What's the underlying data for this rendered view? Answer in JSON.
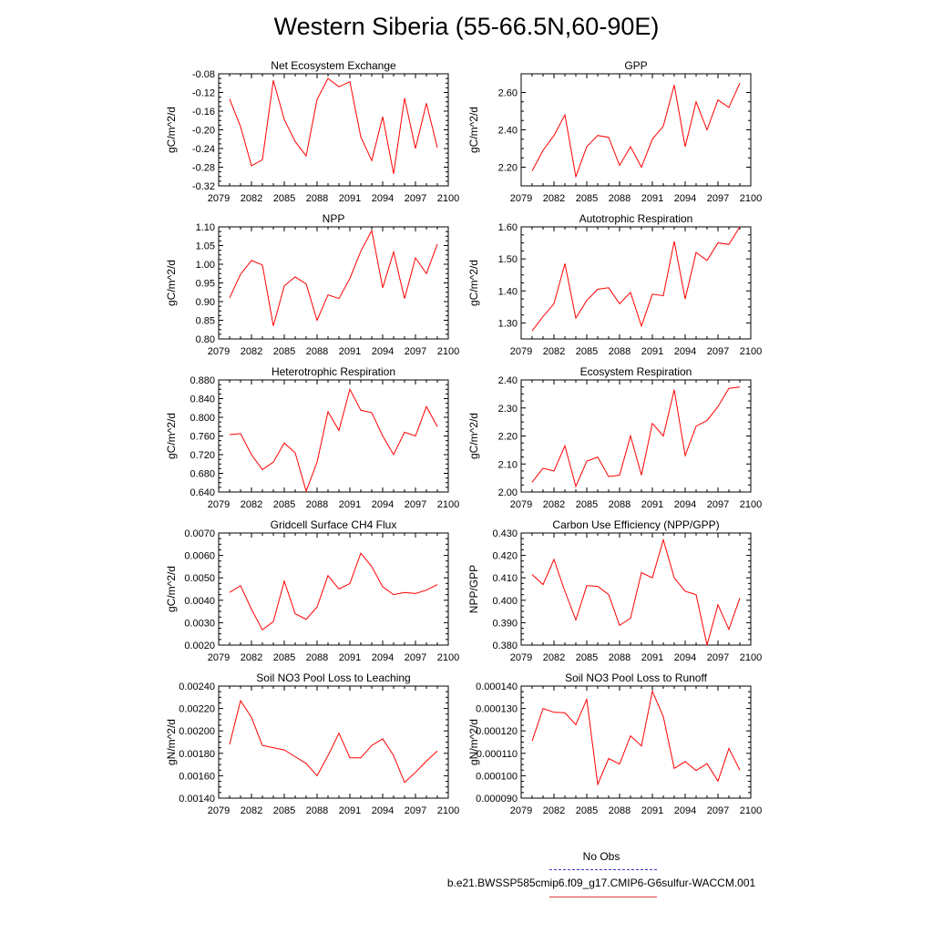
{
  "title": "Western Siberia (55-66.5N,60-90E)",
  "legend": {
    "obs_label": "No Obs",
    "case_label": "b.e21.BWSSP585cmip6.f09_g17.CMIP6-G6sulfur-WACCM.001",
    "obs_color": "#3a3acc",
    "case_color": "#e23a3a"
  },
  "colors": {
    "series": "#ff0000",
    "axis": "#000000"
  },
  "chart_data": [
    {
      "type": "line",
      "title": "Net Ecosystem Exchange",
      "ylabel": "gC/m^2/d",
      "xlim": [
        2079,
        2100
      ],
      "xticks": [
        2079,
        2082,
        2085,
        2088,
        2091,
        2094,
        2097,
        2100
      ],
      "ylim": [
        -0.32,
        -0.08
      ],
      "yticks": [
        -0.32,
        -0.28,
        -0.24,
        -0.2,
        -0.16,
        -0.12,
        -0.08
      ],
      "yticklabels": [
        "-0.32",
        "-0.28",
        "-0.24",
        "-0.20",
        "-0.16",
        "-0.12",
        "-0.08"
      ],
      "x": [
        2080,
        2081,
        2082,
        2083,
        2084,
        2085,
        2086,
        2087,
        2088,
        2089,
        2090,
        2091,
        2092,
        2093,
        2094,
        2095,
        2096,
        2097,
        2098,
        2099
      ],
      "values": [
        -0.134,
        -0.193,
        -0.277,
        -0.264,
        -0.094,
        -0.178,
        -0.225,
        -0.256,
        -0.135,
        -0.09,
        -0.108,
        -0.097,
        -0.215,
        -0.266,
        -0.172,
        -0.294,
        -0.132,
        -0.24,
        -0.143,
        -0.238
      ]
    },
    {
      "type": "line",
      "title": "GPP",
      "ylabel": "gC/m^2/d",
      "xlim": [
        2079,
        2100
      ],
      "xticks": [
        2079,
        2082,
        2085,
        2088,
        2091,
        2094,
        2097,
        2100
      ],
      "ylim": [
        2.1,
        2.7
      ],
      "yticks": [
        2.2,
        2.4,
        2.6
      ],
      "yticklabels": [
        "2.20",
        "2.40",
        "2.60"
      ],
      "x": [
        2080,
        2081,
        2082,
        2083,
        2084,
        2085,
        2086,
        2087,
        2088,
        2089,
        2090,
        2091,
        2092,
        2093,
        2094,
        2095,
        2096,
        2097,
        2098,
        2099
      ],
      "values": [
        2.18,
        2.29,
        2.37,
        2.48,
        2.15,
        2.31,
        2.37,
        2.36,
        2.21,
        2.31,
        2.2,
        2.35,
        2.42,
        2.64,
        2.31,
        2.55,
        2.4,
        2.56,
        2.52,
        2.65
      ]
    },
    {
      "type": "line",
      "title": "NPP",
      "ylabel": "gC/m^2/d",
      "xlim": [
        2079,
        2100
      ],
      "xticks": [
        2079,
        2082,
        2085,
        2088,
        2091,
        2094,
        2097,
        2100
      ],
      "ylim": [
        0.8,
        1.1
      ],
      "yticks": [
        0.8,
        0.85,
        0.9,
        0.95,
        1.0,
        1.05,
        1.1
      ],
      "yticklabels": [
        "0.80",
        "0.85",
        "0.90",
        "0.95",
        "1.00",
        "1.05",
        "1.10"
      ],
      "x": [
        2080,
        2081,
        2082,
        2083,
        2084,
        2085,
        2086,
        2087,
        2088,
        2089,
        2090,
        2091,
        2092,
        2093,
        2094,
        2095,
        2096,
        2097,
        2098,
        2099
      ],
      "values": [
        0.91,
        0.973,
        1.01,
        0.998,
        0.835,
        0.942,
        0.966,
        0.947,
        0.85,
        0.918,
        0.908,
        0.962,
        1.035,
        1.09,
        0.937,
        1.033,
        0.908,
        1.017,
        0.975,
        1.054
      ]
    },
    {
      "type": "line",
      "title": "Autotrophic Respiration",
      "ylabel": "gC/m^2/d",
      "xlim": [
        2079,
        2100
      ],
      "xticks": [
        2079,
        2082,
        2085,
        2088,
        2091,
        2094,
        2097,
        2100
      ],
      "ylim": [
        1.25,
        1.6
      ],
      "yticks": [
        1.3,
        1.4,
        1.5,
        1.6
      ],
      "yticklabels": [
        "1.30",
        "1.40",
        "1.50",
        "1.60"
      ],
      "x": [
        2080,
        2081,
        2082,
        2083,
        2084,
        2085,
        2086,
        2087,
        2088,
        2089,
        2090,
        2091,
        2092,
        2093,
        2094,
        2095,
        2096,
        2097,
        2098,
        2099
      ],
      "values": [
        1.275,
        1.32,
        1.36,
        1.485,
        1.315,
        1.37,
        1.405,
        1.41,
        1.36,
        1.395,
        1.29,
        1.39,
        1.385,
        1.555,
        1.375,
        1.52,
        1.495,
        1.55,
        1.545,
        1.6
      ]
    },
    {
      "type": "line",
      "title": "Heterotrophic Respiration",
      "ylabel": "gC/m^2/d",
      "xlim": [
        2079,
        2100
      ],
      "xticks": [
        2079,
        2082,
        2085,
        2088,
        2091,
        2094,
        2097,
        2100
      ],
      "ylim": [
        0.64,
        0.88
      ],
      "yticks": [
        0.64,
        0.68,
        0.72,
        0.76,
        0.8,
        0.84,
        0.88
      ],
      "yticklabels": [
        "0.640",
        "0.680",
        "0.720",
        "0.760",
        "0.800",
        "0.840",
        "0.880"
      ],
      "x": [
        2080,
        2081,
        2082,
        2083,
        2084,
        2085,
        2086,
        2087,
        2088,
        2089,
        2090,
        2091,
        2092,
        2093,
        2094,
        2095,
        2096,
        2097,
        2098,
        2099
      ],
      "values": [
        0.763,
        0.765,
        0.72,
        0.688,
        0.704,
        0.745,
        0.724,
        0.642,
        0.704,
        0.812,
        0.772,
        0.86,
        0.815,
        0.81,
        0.76,
        0.72,
        0.768,
        0.76,
        0.823,
        0.78
      ]
    },
    {
      "type": "line",
      "title": "Ecosystem Respiration",
      "ylabel": "gC/m^2/d",
      "xlim": [
        2079,
        2100
      ],
      "xticks": [
        2079,
        2082,
        2085,
        2088,
        2091,
        2094,
        2097,
        2100
      ],
      "ylim": [
        2.0,
        2.4
      ],
      "yticks": [
        2.0,
        2.1,
        2.2,
        2.3,
        2.4
      ],
      "yticklabels": [
        "2.00",
        "2.10",
        "2.20",
        "2.30",
        "2.40"
      ],
      "x": [
        2080,
        2081,
        2082,
        2083,
        2084,
        2085,
        2086,
        2087,
        2088,
        2089,
        2090,
        2091,
        2092,
        2093,
        2094,
        2095,
        2096,
        2097,
        2098,
        2099
      ],
      "values": [
        2.035,
        2.085,
        2.075,
        2.165,
        2.02,
        2.11,
        2.125,
        2.055,
        2.06,
        2.2,
        2.06,
        2.245,
        2.2,
        2.365,
        2.13,
        2.235,
        2.255,
        2.305,
        2.37,
        2.375
      ]
    },
    {
      "type": "line",
      "title": "Gridcell Surface CH4 Flux",
      "ylabel": "gC/m^2/d",
      "xlim": [
        2079,
        2100
      ],
      "xticks": [
        2079,
        2082,
        2085,
        2088,
        2091,
        2094,
        2097,
        2100
      ],
      "ylim": [
        0.002,
        0.007
      ],
      "yticks": [
        0.002,
        0.003,
        0.004,
        0.005,
        0.006,
        0.007
      ],
      "yticklabels": [
        "0.0020",
        "0.0030",
        "0.0040",
        "0.0050",
        "0.0060",
        "0.0070"
      ],
      "x": [
        2080,
        2081,
        2082,
        2083,
        2084,
        2085,
        2086,
        2087,
        2088,
        2089,
        2090,
        2091,
        2092,
        2093,
        2094,
        2095,
        2096,
        2097,
        2098,
        2099
      ],
      "values": [
        0.00435,
        0.00465,
        0.0036,
        0.00268,
        0.00305,
        0.00485,
        0.0034,
        0.00315,
        0.0037,
        0.0051,
        0.0045,
        0.00475,
        0.0061,
        0.0055,
        0.0046,
        0.00425,
        0.00435,
        0.0043,
        0.00445,
        0.0047
      ]
    },
    {
      "type": "line",
      "title": "Carbon Use Efficiency (NPP/GPP)",
      "ylabel": "NPP/GPP",
      "xlim": [
        2079,
        2100
      ],
      "xticks": [
        2079,
        2082,
        2085,
        2088,
        2091,
        2094,
        2097,
        2100
      ],
      "ylim": [
        0.38,
        0.43
      ],
      "yticks": [
        0.38,
        0.39,
        0.4,
        0.41,
        0.42,
        0.43
      ],
      "yticklabels": [
        "0.380",
        "0.390",
        "0.400",
        "0.410",
        "0.420",
        "0.430"
      ],
      "x": [
        2080,
        2081,
        2082,
        2083,
        2084,
        2085,
        2086,
        2087,
        2088,
        2089,
        2090,
        2091,
        2092,
        2093,
        2094,
        2095,
        2096,
        2097,
        2098,
        2099
      ],
      "values": [
        0.4115,
        0.407,
        0.4182,
        0.404,
        0.3912,
        0.4065,
        0.4062,
        0.4025,
        0.3888,
        0.392,
        0.4123,
        0.41,
        0.427,
        0.41,
        0.404,
        0.4025,
        0.38,
        0.398,
        0.387,
        0.401
      ]
    },
    {
      "type": "line",
      "title": "Soil NO3 Pool Loss to Leaching",
      "ylabel": "gN/m^2/d",
      "xlim": [
        2079,
        2100
      ],
      "xticks": [
        2079,
        2082,
        2085,
        2088,
        2091,
        2094,
        2097,
        2100
      ],
      "ylim": [
        0.0014,
        0.0024
      ],
      "yticks": [
        0.0014,
        0.0016,
        0.0018,
        0.002,
        0.0022,
        0.0024
      ],
      "yticklabels": [
        "0.00140",
        "0.00160",
        "0.00180",
        "0.00200",
        "0.00220",
        "0.00240"
      ],
      "x": [
        2080,
        2081,
        2082,
        2083,
        2084,
        2085,
        2086,
        2087,
        2088,
        2089,
        2090,
        2091,
        2092,
        2093,
        2094,
        2095,
        2096,
        2097,
        2098,
        2099
      ],
      "values": [
        0.00188,
        0.00227,
        0.00212,
        0.00187,
        0.00185,
        0.00183,
        0.00177,
        0.00171,
        0.0016,
        0.00178,
        0.00198,
        0.00176,
        0.00176,
        0.00187,
        0.00193,
        0.00178,
        0.00154,
        0.00163,
        0.00173,
        0.00182
      ]
    },
    {
      "type": "line",
      "title": "Soil NO3 Pool Loss to Runoff",
      "ylabel": "gN/m^2/d",
      "xlim": [
        2079,
        2100
      ],
      "xticks": [
        2079,
        2082,
        2085,
        2088,
        2091,
        2094,
        2097,
        2100
      ],
      "ylim": [
        9e-05,
        0.00014
      ],
      "yticks": [
        9e-05,
        0.0001,
        0.00011,
        0.00012,
        0.00013,
        0.00014
      ],
      "yticklabels": [
        "0.000090",
        "0.000100",
        "0.000110",
        "0.000120",
        "0.000130",
        "0.000140"
      ],
      "x": [
        2080,
        2081,
        2082,
        2083,
        2084,
        2085,
        2086,
        2087,
        2088,
        2089,
        2090,
        2091,
        2092,
        2093,
        2094,
        2095,
        2096,
        2097,
        2098,
        2099
      ],
      "values": [
        0.0001155,
        0.00013,
        0.0001283,
        0.0001281,
        0.0001228,
        0.0001341,
        9.61e-05,
        0.0001077,
        0.0001052,
        0.0001178,
        0.0001133,
        0.0001377,
        0.0001264,
        0.0001033,
        0.0001063,
        0.0001023,
        0.0001054,
        9.76e-05,
        0.0001122,
        0.0001025
      ]
    }
  ]
}
